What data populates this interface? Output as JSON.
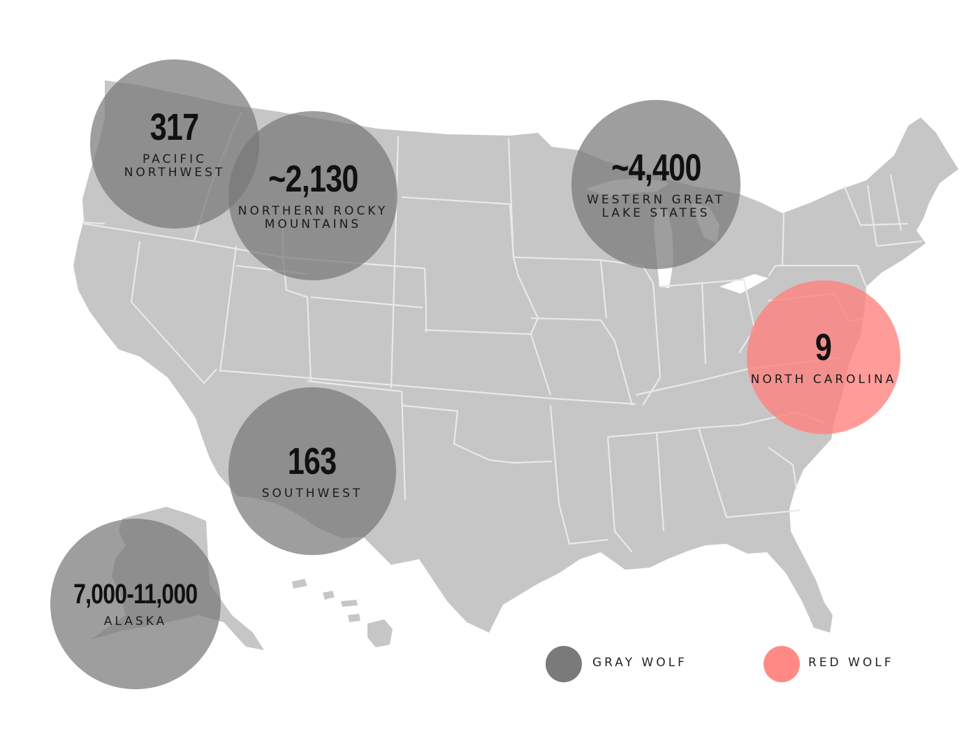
{
  "regions": [
    {
      "id": "pacific-northwest",
      "count": "317",
      "label": "PACIFIC\nNORTHWEST",
      "species": "gray"
    },
    {
      "id": "northern-rocky-mountains",
      "count": "~2,130",
      "label": "NORTHERN ROCKY\nMOUNTAINS",
      "species": "gray"
    },
    {
      "id": "western-great-lake-states",
      "count": "~4,400",
      "label": "WESTERN GREAT\nLAKE STATES",
      "species": "gray"
    },
    {
      "id": "north-carolina",
      "count": "9",
      "label": "NORTH CAROLINA",
      "species": "red"
    },
    {
      "id": "southwest",
      "count": "163",
      "label": "SOUTHWEST",
      "species": "gray"
    },
    {
      "id": "alaska",
      "count": "7,000-11,000",
      "label": "ALASKA",
      "species": "gray"
    }
  ],
  "legend": {
    "gray": {
      "label": "GRAY WOLF",
      "color": "#7a7a7a"
    },
    "red": {
      "label": "RED WOLF",
      "color": "#ff8a85"
    }
  },
  "colors": {
    "land": "#c6c6c6",
    "borders": "#e9e9e9",
    "gray_bubble": "#787878",
    "red_bubble": "#ff807c"
  }
}
